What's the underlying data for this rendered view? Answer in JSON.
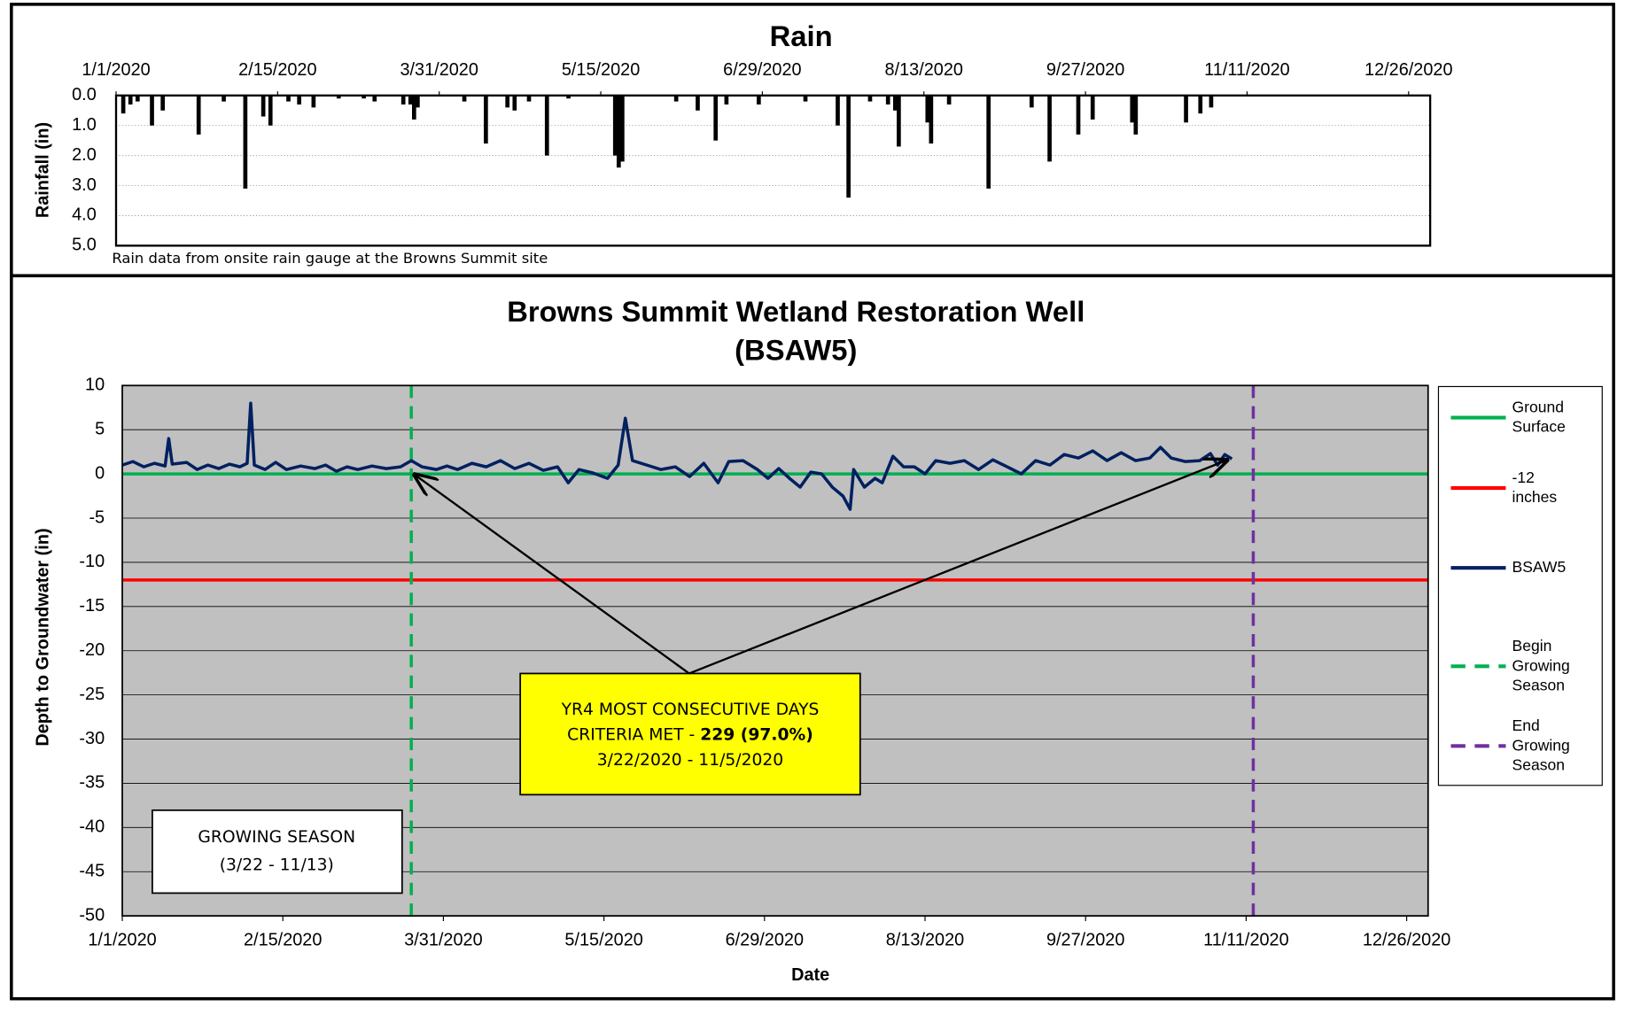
{
  "chart_data": [
    {
      "type": "bar",
      "title": "Rain",
      "y_label": "Rainfall (in)",
      "note": "Rain data from onsite rain gauge at the Browns Summit site",
      "xlim": [
        "1/1/2020",
        "1/1/2021"
      ],
      "xticks": [
        "1/1/2020",
        "2/15/2020",
        "3/31/2020",
        "5/15/2020",
        "6/29/2020",
        "8/13/2020",
        "9/27/2020",
        "11/11/2020",
        "12/26/2020"
      ],
      "ylim": [
        5,
        0
      ],
      "yticks": [
        {
          "value": 0,
          "label": "0.0"
        },
        {
          "value": 1,
          "label": "1.0"
        },
        {
          "value": 2,
          "label": "2.0"
        },
        {
          "value": 3,
          "label": "3.0"
        },
        {
          "value": 4,
          "label": "4.0"
        },
        {
          "value": 5,
          "label": "5.0"
        }
      ],
      "grid": true,
      "color": "#000000",
      "x": [
        "1/3/2020",
        "1/5/2020",
        "1/7/2020",
        "1/11/2020",
        "1/14/2020",
        "1/24/2020",
        "1/31/2020",
        "2/6/2020",
        "2/11/2020",
        "2/13/2020",
        "2/18/2020",
        "2/21/2020",
        "2/25/2020",
        "3/3/2020",
        "3/10/2020",
        "3/13/2020",
        "3/21/2020",
        "3/23/2020",
        "3/24/2020",
        "3/25/2020",
        "4/7/2020",
        "4/13/2020",
        "4/19/2020",
        "4/21/2020",
        "4/25/2020",
        "4/30/2020",
        "5/6/2020",
        "5/19/2020",
        "5/20/2020",
        "5/21/2020",
        "6/5/2020",
        "6/11/2020",
        "6/16/2020",
        "6/19/2020",
        "6/28/2020",
        "7/11/2020",
        "7/20/2020",
        "7/23/2020",
        "7/29/2020",
        "8/3/2020",
        "8/5/2020",
        "8/6/2020",
        "8/14/2020",
        "8/15/2020",
        "8/20/2020",
        "8/31/2020",
        "9/12/2020",
        "9/17/2020",
        "9/25/2020",
        "9/29/2020",
        "10/10/2020",
        "10/11/2020",
        "10/25/2020",
        "10/29/2020",
        "11/1/2020"
      ],
      "values": [
        0.6,
        0.3,
        0.2,
        1.0,
        0.5,
        1.3,
        0.2,
        3.1,
        0.7,
        1.0,
        0.2,
        0.3,
        0.4,
        0.1,
        0.1,
        0.2,
        0.3,
        0.3,
        0.8,
        0.4,
        0.2,
        1.6,
        0.4,
        0.5,
        0.2,
        2.0,
        0.1,
        2.0,
        2.4,
        2.2,
        0.2,
        0.5,
        1.5,
        0.3,
        0.3,
        0.2,
        1.0,
        3.4,
        0.2,
        0.3,
        0.5,
        1.7,
        0.9,
        1.6,
        0.3,
        3.1,
        0.4,
        2.2,
        1.3,
        0.8,
        0.9,
        1.3,
        0.9,
        0.6,
        0.4
      ]
    },
    {
      "type": "line",
      "title": [
        "Browns Summit Wetland Restoration Well",
        "(BSAW5)"
      ],
      "x_label": "Date",
      "y_label": "Depth to Groundwater (in)",
      "xlim": [
        "1/1/2020",
        "1/1/2021"
      ],
      "xticks": [
        "1/1/2020",
        "2/15/2020",
        "3/31/2020",
        "5/15/2020",
        "6/29/2020",
        "8/13/2020",
        "9/27/2020",
        "11/11/2020",
        "12/26/2020"
      ],
      "ylim": [
        -50,
        10
      ],
      "yticks": [
        -50,
        -45,
        -40,
        -35,
        -30,
        -25,
        -20,
        -15,
        -10,
        -5,
        0,
        5,
        10
      ],
      "grid": true,
      "background": "#c0c0c0",
      "hlines": [
        {
          "name": "Ground Surface",
          "color": "#00b050",
          "value": 0
        },
        {
          "name": "-12 inches",
          "color": "#ff0000",
          "value": -12
        }
      ],
      "series": [
        {
          "name": "BSAW5",
          "color": "#002060",
          "x": [
            "1/1/2020",
            "1/4/2020",
            "1/7/2020",
            "1/10/2020",
            "1/13/2020",
            "1/14/2020",
            "1/15/2020",
            "1/19/2020",
            "1/22/2020",
            "1/25/2020",
            "1/28/2020",
            "1/31/2020",
            "2/3/2020",
            "2/5/2020",
            "2/6/2020",
            "2/7/2020",
            "2/10/2020",
            "2/13/2020",
            "2/16/2020",
            "2/20/2020",
            "2/24/2020",
            "2/27/2020",
            "3/1/2020",
            "3/4/2020",
            "3/7/2020",
            "3/11/2020",
            "3/15/2020",
            "3/19/2020",
            "3/22/2020",
            "3/25/2020",
            "3/29/2020",
            "4/1/2020",
            "4/4/2020",
            "4/8/2020",
            "4/12/2020",
            "4/16/2020",
            "4/20/2020",
            "4/24/2020",
            "4/28/2020",
            "5/2/2020",
            "5/5/2020",
            "5/8/2020",
            "5/12/2020",
            "5/16/2020",
            "5/19/2020",
            "5/21/2020",
            "5/23/2020",
            "5/27/2020",
            "5/31/2020",
            "6/4/2020",
            "6/8/2020",
            "6/12/2020",
            "6/16/2020",
            "6/19/2020",
            "6/23/2020",
            "6/27/2020",
            "6/30/2020",
            "7/3/2020",
            "7/6/2020",
            "7/9/2020",
            "7/12/2020",
            "7/15/2020",
            "7/18/2020",
            "7/21/2020",
            "7/23/2020",
            "7/24/2020",
            "7/27/2020",
            "7/30/2020",
            "8/1/2020",
            "8/4/2020",
            "8/7/2020",
            "8/10/2020",
            "8/13/2020",
            "8/16/2020",
            "8/20/2020",
            "8/24/2020",
            "8/28/2020",
            "9/1/2020",
            "9/5/2020",
            "9/9/2020",
            "9/13/2020",
            "9/17/2020",
            "9/21/2020",
            "9/25/2020",
            "9/29/2020",
            "10/3/2020",
            "10/7/2020",
            "10/11/2020",
            "10/15/2020",
            "10/18/2020",
            "10/21/2020",
            "10/25/2020",
            "10/29/2020",
            "11/1/2020",
            "11/3/2020",
            "11/5/2020",
            "11/7/2020"
          ],
          "values": [
            1.0,
            1.4,
            0.8,
            1.2,
            0.9,
            4.0,
            1.1,
            1.3,
            0.5,
            1.0,
            0.6,
            1.1,
            0.8,
            1.2,
            8.0,
            1.0,
            0.5,
            1.3,
            0.5,
            0.9,
            0.6,
            1.0,
            0.3,
            0.8,
            0.5,
            0.9,
            0.6,
            0.8,
            1.5,
            0.8,
            0.5,
            0.9,
            0.5,
            1.2,
            0.8,
            1.5,
            0.6,
            1.2,
            0.4,
            0.8,
            -1.0,
            0.5,
            0.1,
            -0.5,
            1.0,
            6.3,
            1.5,
            1.0,
            0.5,
            0.8,
            -0.3,
            1.2,
            -1.0,
            1.4,
            1.5,
            0.5,
            -0.5,
            0.6,
            -0.5,
            -1.5,
            0.2,
            0.0,
            -1.5,
            -2.5,
            -4.0,
            0.5,
            -1.5,
            -0.5,
            -1.0,
            2.0,
            0.8,
            0.8,
            0.0,
            1.5,
            1.2,
            1.5,
            0.5,
            1.6,
            0.8,
            0.0,
            1.5,
            1.0,
            2.2,
            1.8,
            2.6,
            1.5,
            2.4,
            1.5,
            1.8,
            3.0,
            1.8,
            1.4,
            1.5,
            2.3,
            1.0,
            2.2,
            1.7
          ]
        }
      ],
      "vlines": [
        {
          "name": "Begin Growing Season",
          "color": "#00b050",
          "x": "3/22/2020"
        },
        {
          "name": "End Growing Season",
          "color": "#7030a0",
          "x": "11/13/2020"
        }
      ],
      "callout": {
        "lines": [
          "YR4 MOST CONSECUTIVE DAYS",
          "CRITERIA MET - ",
          "3/22/2020 - 11/5/2020"
        ],
        "bold": "229 (97.0%)"
      },
      "season_box": [
        "GROWING SEASON",
        "(3/22 - 11/13)"
      ]
    }
  ]
}
